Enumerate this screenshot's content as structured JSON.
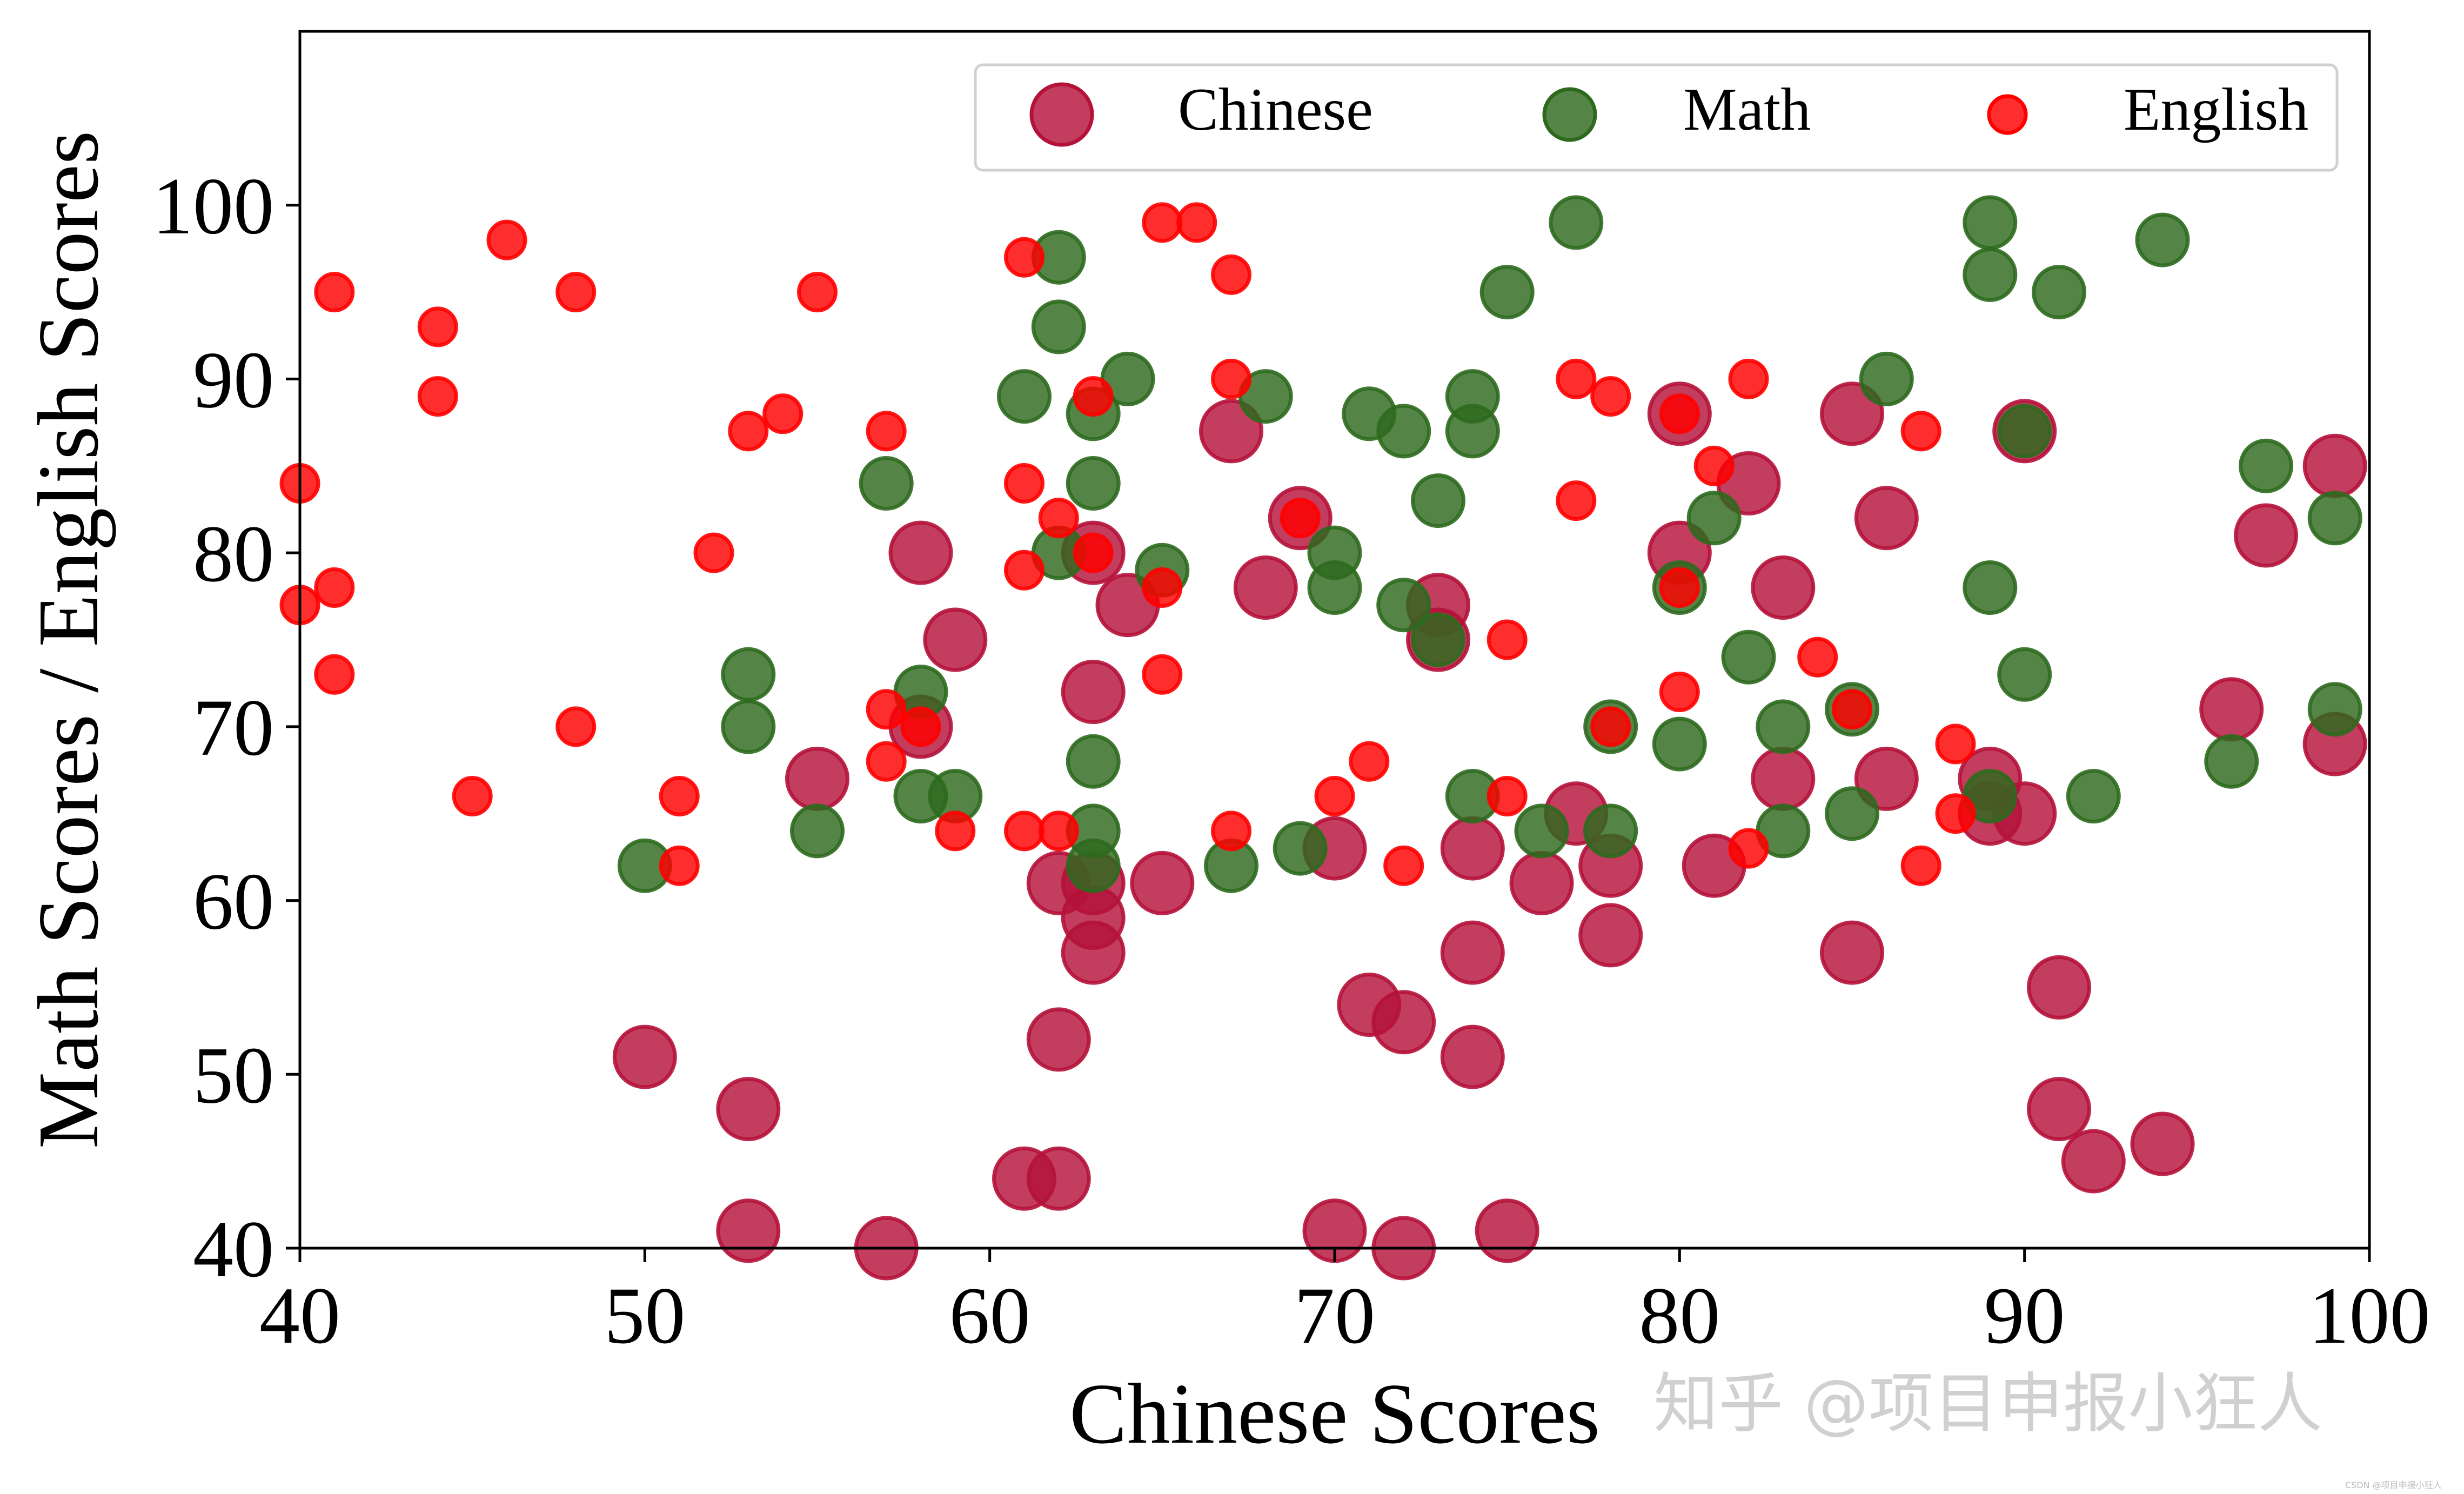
{
  "colors": {
    "chinese": "#b5123a",
    "math": "#2e6a1e",
    "english": "#ff0000"
  },
  "watermark": "知乎 @项目申报小狂人",
  "watermark_small": "CSDN @项目申报小狂人",
  "chart_data": {
    "type": "scatter",
    "title": "",
    "xlabel": "Chinese Scores",
    "ylabel": "Math Scores / English Scores",
    "xlim": [
      40,
      100
    ],
    "ylim": [
      40,
      110
    ],
    "x_ticks": [
      40,
      50,
      60,
      70,
      80,
      90,
      100
    ],
    "y_ticks": [
      40,
      50,
      60,
      70,
      80,
      90,
      100
    ],
    "x_tick_labels": [
      "40",
      "50",
      "60",
      "70",
      "80",
      "90",
      "100"
    ],
    "y_tick_labels": [
      "40",
      "50",
      "60",
      "70",
      "80",
      "90",
      "100"
    ],
    "grid": false,
    "legend": {
      "placement": "top-right",
      "entries": [
        "Chinese",
        "Math",
        "English"
      ]
    },
    "series": [
      {
        "name": "Chinese",
        "color": "#b5123a",
        "marker_size": "large",
        "points": [
          [
            50,
            51
          ],
          [
            53,
            48
          ],
          [
            53,
            41
          ],
          [
            55,
            67
          ],
          [
            57,
            40
          ],
          [
            58,
            80
          ],
          [
            58,
            70
          ],
          [
            59,
            75
          ],
          [
            61,
            44
          ],
          [
            62,
            44
          ],
          [
            62,
            52
          ],
          [
            62,
            61
          ],
          [
            63,
            80
          ],
          [
            63,
            72
          ],
          [
            63,
            61
          ],
          [
            63,
            59
          ],
          [
            63,
            57
          ],
          [
            64,
            77
          ],
          [
            65,
            61
          ],
          [
            67,
            87
          ],
          [
            68,
            78
          ],
          [
            69,
            82
          ],
          [
            70,
            63
          ],
          [
            70,
            41
          ],
          [
            71,
            54
          ],
          [
            72,
            53
          ],
          [
            72,
            40
          ],
          [
            73,
            77
          ],
          [
            73,
            75
          ],
          [
            74,
            63
          ],
          [
            74,
            57
          ],
          [
            74,
            51
          ],
          [
            75,
            41
          ],
          [
            76,
            61
          ],
          [
            77,
            65
          ],
          [
            78,
            62
          ],
          [
            78,
            58
          ],
          [
            80,
            88
          ],
          [
            80,
            80
          ],
          [
            81,
            62
          ],
          [
            82,
            84
          ],
          [
            83,
            78
          ],
          [
            83,
            67
          ],
          [
            85,
            88
          ],
          [
            85,
            57
          ],
          [
            86,
            82
          ],
          [
            86,
            67
          ],
          [
            89,
            67
          ],
          [
            89,
            65
          ],
          [
            90,
            87
          ],
          [
            90,
            65
          ],
          [
            91,
            55
          ],
          [
            91,
            48
          ],
          [
            92,
            45
          ],
          [
            94,
            46
          ],
          [
            96,
            71
          ],
          [
            97,
            81
          ],
          [
            99,
            85
          ],
          [
            99,
            69
          ]
        ]
      },
      {
        "name": "Math",
        "color": "#2e6a1e",
        "marker_size": "medium",
        "points": [
          [
            50,
            62
          ],
          [
            53,
            73
          ],
          [
            53,
            70
          ],
          [
            55,
            64
          ],
          [
            57,
            84
          ],
          [
            58,
            72
          ],
          [
            58,
            66
          ],
          [
            59,
            66
          ],
          [
            61,
            89
          ],
          [
            62,
            97
          ],
          [
            62,
            93
          ],
          [
            62,
            80
          ],
          [
            63,
            88
          ],
          [
            63,
            84
          ],
          [
            63,
            68
          ],
          [
            63,
            64
          ],
          [
            63,
            62
          ],
          [
            64,
            90
          ],
          [
            65,
            79
          ],
          [
            67,
            62
          ],
          [
            68,
            89
          ],
          [
            69,
            63
          ],
          [
            70,
            80
          ],
          [
            70,
            78
          ],
          [
            71,
            88
          ],
          [
            72,
            87
          ],
          [
            72,
            77
          ],
          [
            73,
            83
          ],
          [
            73,
            75
          ],
          [
            74,
            89
          ],
          [
            74,
            87
          ],
          [
            74,
            66
          ],
          [
            75,
            95
          ],
          [
            76,
            64
          ],
          [
            77,
            99
          ],
          [
            78,
            70
          ],
          [
            78,
            64
          ],
          [
            80,
            78
          ],
          [
            80,
            69
          ],
          [
            81,
            82
          ],
          [
            82,
            74
          ],
          [
            83,
            70
          ],
          [
            83,
            64
          ],
          [
            85,
            71
          ],
          [
            85,
            65
          ],
          [
            86,
            90
          ],
          [
            89,
            99
          ],
          [
            89,
            96
          ],
          [
            89,
            78
          ],
          [
            89,
            66
          ],
          [
            90,
            87
          ],
          [
            90,
            73
          ],
          [
            91,
            95
          ],
          [
            92,
            66
          ],
          [
            94,
            98
          ],
          [
            96,
            68
          ],
          [
            97,
            85
          ],
          [
            99,
            82
          ],
          [
            99,
            71
          ]
        ]
      },
      {
        "name": "English",
        "color": "#ff0000",
        "marker_size": "small",
        "points": [
          [
            40,
            84
          ],
          [
            40,
            77
          ],
          [
            41,
            95
          ],
          [
            41,
            78
          ],
          [
            41,
            73
          ],
          [
            44,
            93
          ],
          [
            44,
            89
          ],
          [
            45,
            66
          ],
          [
            46,
            98
          ],
          [
            48,
            95
          ],
          [
            48,
            70
          ],
          [
            51,
            66
          ],
          [
            51,
            62
          ],
          [
            52,
            80
          ],
          [
            53,
            87
          ],
          [
            54,
            88
          ],
          [
            55,
            95
          ],
          [
            57,
            87
          ],
          [
            57,
            71
          ],
          [
            57,
            68
          ],
          [
            58,
            70
          ],
          [
            59,
            64
          ],
          [
            61,
            97
          ],
          [
            61,
            84
          ],
          [
            61,
            79
          ],
          [
            61,
            64
          ],
          [
            62,
            82
          ],
          [
            62,
            64
          ],
          [
            63,
            89
          ],
          [
            63,
            80
          ],
          [
            65,
            99
          ],
          [
            65,
            78
          ],
          [
            65,
            73
          ],
          [
            66,
            99
          ],
          [
            67,
            96
          ],
          [
            67,
            90
          ],
          [
            67,
            64
          ],
          [
            69,
            82
          ],
          [
            70,
            66
          ],
          [
            71,
            68
          ],
          [
            72,
            62
          ],
          [
            75,
            75
          ],
          [
            75,
            66
          ],
          [
            77,
            90
          ],
          [
            77,
            83
          ],
          [
            78,
            89
          ],
          [
            78,
            70
          ],
          [
            80,
            88
          ],
          [
            80,
            78
          ],
          [
            80,
            72
          ],
          [
            81,
            85
          ],
          [
            82,
            90
          ],
          [
            82,
            63
          ],
          [
            84,
            74
          ],
          [
            85,
            71
          ],
          [
            87,
            87
          ],
          [
            87,
            62
          ],
          [
            88,
            69
          ],
          [
            88,
            65
          ]
        ]
      }
    ]
  }
}
